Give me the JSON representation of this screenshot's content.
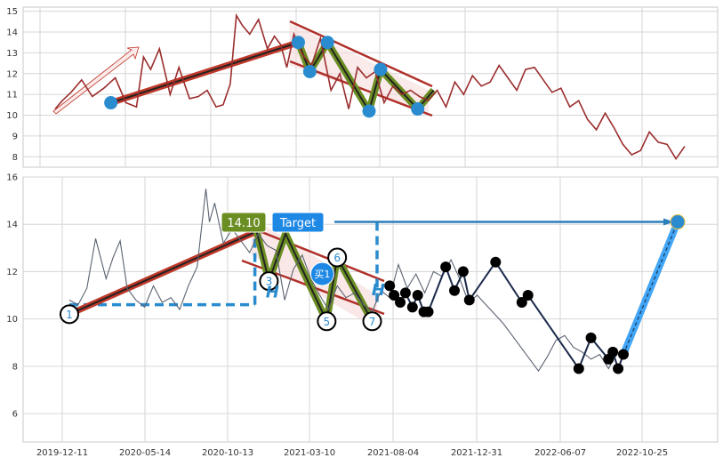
{
  "chart_data": [
    {
      "type": "line",
      "panel": "top",
      "title": "",
      "xlabel": "",
      "ylabel": "",
      "ylim": [
        7.5,
        15.2
      ],
      "yticks": [
        8,
        9,
        10,
        11,
        12,
        13,
        14,
        15
      ],
      "grid": true,
      "series": [
        {
          "color": "#9b2d2d",
          "x": [
            0,
            8,
            18,
            30,
            42,
            55,
            68,
            80,
            92,
            100,
            108,
            118,
            130,
            140,
            152,
            162,
            172,
            182,
            190,
            198,
            205,
            212,
            220,
            230,
            240,
            248,
            255,
            262,
            270,
            280,
            290,
            300,
            312,
            322,
            332,
            342,
            352,
            362,
            372,
            382,
            392,
            402,
            412,
            422,
            432,
            442,
            452,
            462,
            472,
            482,
            492,
            502,
            512,
            522,
            532,
            542,
            552,
            562,
            572,
            582,
            592,
            602,
            612,
            622,
            632,
            642,
            652,
            662,
            672,
            682,
            692,
            702,
            712
          ],
          "y": [
            10.3,
            10.7,
            11.1,
            11.7,
            10.9,
            11.3,
            11.8,
            10.6,
            10.4,
            12.8,
            12.2,
            13.2,
            11.0,
            12.3,
            10.8,
            10.9,
            11.2,
            10.4,
            10.5,
            11.5,
            14.8,
            14.3,
            13.9,
            14.6,
            13.2,
            13.8,
            13.4,
            12.3,
            13.9,
            12.9,
            12.4,
            13.7,
            11.2,
            12.0,
            10.3,
            12.3,
            11.8,
            12.1,
            10.6,
            11.4,
            11.0,
            11.2,
            10.9,
            10.7,
            11.2,
            10.4,
            11.6,
            11.0,
            11.9,
            11.4,
            11.6,
            12.4,
            11.8,
            11.2,
            12.2,
            12.3,
            11.7,
            11.1,
            11.3,
            10.4,
            10.7,
            9.8,
            9.3,
            10.1,
            9.4,
            8.6,
            8.1,
            8.3,
            9.2,
            8.7,
            8.6,
            7.9,
            8.5
          ]
        }
      ],
      "pattern_points": [
        {
          "x": 63,
          "y": 10.6
        },
        {
          "x": 275,
          "y": 13.5
        },
        {
          "x": 288,
          "y": 12.1
        },
        {
          "x": 308,
          "y": 13.5
        },
        {
          "x": 355,
          "y": 10.2
        },
        {
          "x": 368,
          "y": 12.2
        },
        {
          "x": 410,
          "y": 10.3
        }
      ]
    },
    {
      "type": "line",
      "panel": "bottom",
      "title": "",
      "xlabel": "",
      "ylabel": "",
      "ylim": [
        4.8,
        16.0
      ],
      "yticks": [
        6,
        8,
        10,
        12,
        14,
        16
      ],
      "grid": true,
      "xtick_labels": [
        "2019-12-11",
        "2020-05-14",
        "2020-10-13",
        "2021-03-10",
        "2021-08-04",
        "2021-12-31",
        "2022-06-07",
        "2022-10-25"
      ],
      "price_series": {
        "color": "#5a6270",
        "x": [
          0,
          10,
          20,
          30,
          42,
          50,
          58,
          66,
          76,
          86,
          96,
          106,
          116,
          126,
          136,
          146,
          156,
          160,
          166,
          176,
          186,
          196,
          206,
          216,
          226,
          236,
          246,
          256,
          266,
          276,
          286,
          296,
          306,
          316,
          326,
          336,
          346,
          356,
          366,
          376,
          386,
          396,
          406,
          416,
          426,
          436,
          446,
          456,
          466,
          476,
          486,
          496,
          506,
          516,
          526,
          536,
          546,
          556,
          566,
          576,
          586,
          596,
          606,
          616,
          626,
          636
        ],
        "y": [
          10.8,
          10.6,
          11.3,
          13.4,
          11.7,
          12.6,
          13.3,
          11.3,
          10.8,
          10.5,
          11.4,
          10.7,
          10.9,
          10.4,
          11.4,
          12.2,
          15.5,
          14.1,
          14.9,
          13.2,
          13.8,
          13.3,
          12.8,
          13.6,
          13.1,
          12.9,
          10.8,
          12.1,
          12.7,
          11.7,
          11.0,
          10.4,
          11.4,
          10.9,
          11.1,
          10.6,
          10.3,
          11.2,
          10.9,
          12.3,
          11.3,
          11.9,
          11.1,
          12.0,
          11.8,
          12.5,
          11.7,
          10.7,
          11.0,
          10.6,
          10.2,
          9.8,
          9.3,
          8.8,
          8.3,
          7.8,
          8.4,
          9.1,
          9.3,
          8.8,
          8.6,
          8.3,
          8.5,
          7.9,
          8.6,
          8.4
        ]
      },
      "x_domain": [
        -22,
        725
      ],
      "zigzag": {
        "x": [
          366,
          371,
          378,
          384,
          392,
          398,
          405,
          410,
          430,
          440,
          450,
          457,
          487,
          517,
          524,
          582,
          596,
          616,
          621,
          627,
          633
        ],
        "y": [
          11.4,
          11.0,
          10.7,
          11.1,
          10.5,
          11.0,
          10.3,
          10.3,
          12.2,
          11.2,
          12.0,
          10.8,
          12.4,
          10.7,
          11.0,
          7.9,
          9.2,
          8.3,
          8.6,
          7.9,
          8.5
        ]
      },
      "pattern_points": [
        {
          "label": "1",
          "x": 0,
          "y": 10.2
        },
        {
          "label": "",
          "x": 214,
          "y": 13.7
        },
        {
          "label": "3",
          "x": 228,
          "y": 11.6
        },
        {
          "label": "",
          "x": 247,
          "y": 13.6
        },
        {
          "label": "5",
          "x": 294,
          "y": 9.9
        },
        {
          "label": "6",
          "x": 306,
          "y": 12.6
        },
        {
          "label": "7",
          "x": 346,
          "y": 9.9
        }
      ],
      "baseline_y": 10.6,
      "target": {
        "from_x": 362,
        "to_x": 695,
        "y": 14.1,
        "value_label": "14.10",
        "target_label": "Target",
        "value_color": "#6b8e23",
        "target_color": "#1e88e5"
      },
      "projection": {
        "from_x": 633,
        "from_y": 8.5,
        "to_x": 695,
        "to_y": 14.1,
        "color": "#42a5f5"
      },
      "buy_marker": {
        "label": "买1",
        "x": 289,
        "y": 11.9,
        "color": "#1e88e5"
      },
      "h_markers": [
        {
          "label": "H",
          "x": 232,
          "y": 10.9
        },
        {
          "label": "H",
          "x": 353,
          "y": 11.0
        }
      ],
      "colors": {
        "trend": "#c0392b",
        "zigzag_fill": "#6b8e23",
        "dashed": "#2a8ccf",
        "channel_fill": "#f6d8d8"
      }
    }
  ]
}
